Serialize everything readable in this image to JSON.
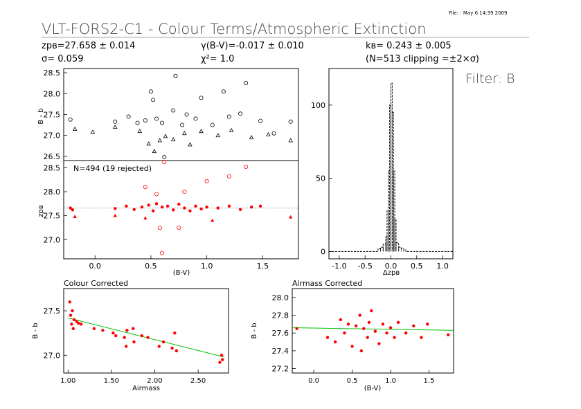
{
  "header": {
    "file_stamp": "File:   : May  6 14:39 2009",
    "title": "VLT-FORS2-C1  -  Colour Terms/Atmospheric Extinction",
    "zp_line": "zpʙ=27.658 ± 0.014",
    "sigma_line": "σ=  0.059",
    "gamma_line": "γ(B-V)=-0.017 ± 0.010",
    "chi_line": "χ²=   1.0",
    "k_line": "kʙ= 0.243 ± 0.005",
    "n_line": "(N=513 clipping =±2×σ)",
    "filter": "Filter: B"
  },
  "colors": {
    "accent": "#ff0000",
    "fit_line": "#00c000",
    "axis": "#000000"
  },
  "chart_data": [
    {
      "id": "raw",
      "type": "scatter",
      "xlabel": "",
      "ylabel": "B - b",
      "xlim": [
        -0.28,
        1.82
      ],
      "ylim": [
        26.4,
        28.6
      ],
      "yticks": [
        "26.5",
        "27.0",
        "27.5",
        "28.0",
        "28.5"
      ],
      "ytick_values": [
        26.5,
        27.0,
        27.5,
        28.0,
        28.5
      ],
      "series": [
        {
          "marker": "circle",
          "points": [
            [
              -0.22,
              27.38
            ],
            [
              0.18,
              27.33
            ],
            [
              0.3,
              27.45
            ],
            [
              0.38,
              27.3
            ],
            [
              0.45,
              27.36
            ],
            [
              0.5,
              28.05
            ],
            [
              0.52,
              27.85
            ],
            [
              0.55,
              27.4
            ],
            [
              0.6,
              27.3
            ],
            [
              0.62,
              26.48
            ],
            [
              0.7,
              27.6
            ],
            [
              0.72,
              28.42
            ],
            [
              0.78,
              27.25
            ],
            [
              0.82,
              27.5
            ],
            [
              0.9,
              27.4
            ],
            [
              0.95,
              27.9
            ],
            [
              1.05,
              27.25
            ],
            [
              1.15,
              28.05
            ],
            [
              1.2,
              27.45
            ],
            [
              1.3,
              27.52
            ],
            [
              1.35,
              28.25
            ],
            [
              1.48,
              27.35
            ],
            [
              1.6,
              27.05
            ],
            [
              1.75,
              27.33
            ]
          ]
        },
        {
          "marker": "triangle",
          "points": [
            [
              -0.18,
              27.15
            ],
            [
              -0.02,
              27.08
            ],
            [
              0.18,
              27.2
            ],
            [
              0.4,
              27.1
            ],
            [
              0.48,
              26.8
            ],
            [
              0.53,
              26.62
            ],
            [
              0.58,
              26.88
            ],
            [
              0.63,
              26.98
            ],
            [
              0.7,
              26.9
            ],
            [
              0.8,
              27.05
            ],
            [
              0.85,
              26.78
            ],
            [
              0.95,
              27.1
            ],
            [
              1.1,
              27.0
            ],
            [
              1.22,
              27.12
            ],
            [
              1.4,
              26.95
            ],
            [
              1.55,
              27.02
            ],
            [
              1.75,
              26.88
            ]
          ]
        }
      ]
    },
    {
      "id": "corrected",
      "type": "scatter",
      "xlabel": "(B-V)",
      "ylabel": "zpʙ",
      "annotation": "N=494 (19 rejected)",
      "xlim": [
        -0.28,
        1.82
      ],
      "ylim": [
        26.6,
        28.65
      ],
      "yticks": [
        "27.0",
        "27.5",
        "28.0",
        "28.5"
      ],
      "ytick_values": [
        27.0,
        27.5,
        28.0,
        28.5
      ],
      "xticks": [
        "0.0",
        "0.5",
        "1.0",
        "1.5"
      ],
      "xtick_values": [
        0.0,
        0.5,
        1.0,
        1.5
      ],
      "reference_line": 27.658,
      "series": [
        {
          "name": "",
          "marker": "filled-circle",
          "points": [
            [
              -0.22,
              27.66
            ],
            [
              -0.2,
              27.62
            ],
            [
              0.18,
              27.65
            ],
            [
              0.28,
              27.7
            ],
            [
              0.35,
              27.63
            ],
            [
              0.42,
              27.68
            ],
            [
              0.48,
              27.72
            ],
            [
              0.52,
              27.6
            ],
            [
              0.55,
              27.75
            ],
            [
              0.6,
              27.68
            ],
            [
              0.65,
              27.7
            ],
            [
              0.7,
              27.62
            ],
            [
              0.75,
              27.74
            ],
            [
              0.8,
              27.66
            ],
            [
              0.85,
              27.6
            ],
            [
              0.9,
              27.7
            ],
            [
              0.95,
              27.64
            ],
            [
              1.0,
              27.68
            ],
            [
              1.1,
              27.66
            ],
            [
              1.2,
              27.7
            ],
            [
              1.3,
              27.63
            ],
            [
              1.4,
              27.68
            ],
            [
              1.48,
              27.7
            ]
          ]
        },
        {
          "name": "",
          "marker": "open-circle",
          "points": [
            [
              0.45,
              28.1
            ],
            [
              0.55,
              27.95
            ],
            [
              0.58,
              27.25
            ],
            [
              0.6,
              26.72
            ],
            [
              0.62,
              28.62
            ],
            [
              0.8,
              28.0
            ],
            [
              1.0,
              28.22
            ],
            [
              1.2,
              28.32
            ],
            [
              1.35,
              28.52
            ],
            [
              0.75,
              27.25
            ]
          ]
        },
        {
          "name": "",
          "marker": "filled-triangle",
          "points": [
            [
              -0.18,
              27.48
            ],
            [
              0.18,
              27.5
            ],
            [
              0.45,
              27.45
            ],
            [
              1.05,
              27.4
            ],
            [
              1.75,
              27.47
            ]
          ]
        }
      ]
    },
    {
      "id": "histogram",
      "type": "histogram",
      "xlabel": "Δzpʙ",
      "xlim": [
        -1.2,
        1.2
      ],
      "ylim": [
        -5,
        125
      ],
      "xticks": [
        "-1.0",
        "-0.5",
        "0.0",
        "0.5",
        "1.0"
      ],
      "xtick_values": [
        -1.0,
        -0.5,
        0.0,
        0.5,
        1.0
      ],
      "yticks": [
        "0",
        "50",
        "100"
      ],
      "ytick_values": [
        0,
        50,
        100
      ],
      "bins_x": [
        -0.25,
        -0.2,
        -0.15,
        -0.1,
        -0.075,
        -0.05,
        -0.025,
        0.0,
        0.025,
        0.05,
        0.075,
        0.1,
        0.15,
        0.2,
        0.25
      ],
      "counts": [
        2,
        3,
        5,
        10,
        28,
        55,
        100,
        115,
        95,
        55,
        22,
        6,
        3,
        2,
        1
      ]
    },
    {
      "id": "colour_corrected",
      "type": "scatter",
      "title": "Colour Corrected",
      "xlabel": "Airmass",
      "ylabel": "B - b",
      "xlim": [
        0.95,
        2.85
      ],
      "ylim": [
        26.8,
        27.75
      ],
      "xticks": [
        "1.00",
        "1.50",
        "2.00",
        "2.50"
      ],
      "xtick_values": [
        1.0,
        1.5,
        2.0,
        2.5
      ],
      "yticks": [
        "27.0",
        "27.5"
      ],
      "ytick_values": [
        27.0,
        27.5
      ],
      "fit_line": [
        [
          1.0,
          27.42
        ],
        [
          2.8,
          26.98
        ]
      ],
      "points": [
        [
          1.02,
          27.6
        ],
        [
          1.03,
          27.45
        ],
        [
          1.04,
          27.35
        ],
        [
          1.05,
          27.5
        ],
        [
          1.06,
          27.3
        ],
        [
          1.07,
          27.4
        ],
        [
          1.1,
          27.38
        ],
        [
          1.12,
          27.36
        ],
        [
          1.15,
          27.35
        ],
        [
          1.3,
          27.3
        ],
        [
          1.4,
          27.28
        ],
        [
          1.52,
          27.25
        ],
        [
          1.55,
          27.22
        ],
        [
          1.65,
          27.2
        ],
        [
          1.67,
          27.1
        ],
        [
          1.68,
          27.28
        ],
        [
          1.75,
          27.3
        ],
        [
          1.76,
          27.15
        ],
        [
          1.85,
          27.22
        ],
        [
          1.92,
          27.2
        ],
        [
          2.05,
          27.1
        ],
        [
          2.1,
          27.15
        ],
        [
          2.2,
          27.08
        ],
        [
          2.23,
          27.25
        ],
        [
          2.25,
          27.05
        ],
        [
          2.75,
          26.92
        ],
        [
          2.77,
          27.0
        ],
        [
          2.78,
          26.95
        ]
      ]
    },
    {
      "id": "airmass_corrected",
      "type": "scatter",
      "title": "Airmass Corrected",
      "xlabel": "(B-V)",
      "ylabel": "B - b",
      "xlim": [
        -0.28,
        1.82
      ],
      "ylim": [
        27.15,
        28.1
      ],
      "xticks": [
        "0.0",
        "0.5",
        "1.0",
        "1.5"
      ],
      "xtick_values": [
        0.0,
        0.5,
        1.0,
        1.5
      ],
      "yticks": [
        "27.2",
        "27.4",
        "27.6",
        "27.8",
        "28.0"
      ],
      "ytick_values": [
        27.2,
        27.4,
        27.6,
        27.8,
        28.0
      ],
      "fit_line": [
        [
          -0.28,
          27.66
        ],
        [
          1.82,
          27.63
        ]
      ],
      "points": [
        [
          -0.22,
          27.65
        ],
        [
          0.18,
          27.55
        ],
        [
          0.28,
          27.5
        ],
        [
          0.35,
          27.75
        ],
        [
          0.4,
          27.6
        ],
        [
          0.45,
          27.7
        ],
        [
          0.5,
          27.45
        ],
        [
          0.55,
          27.68
        ],
        [
          0.6,
          27.8
        ],
        [
          0.62,
          27.4
        ],
        [
          0.65,
          27.65
        ],
        [
          0.7,
          27.55
        ],
        [
          0.72,
          27.72
        ],
        [
          0.75,
          27.85
        ],
        [
          0.8,
          27.62
        ],
        [
          0.85,
          27.48
        ],
        [
          0.9,
          27.7
        ],
        [
          0.95,
          27.6
        ],
        [
          1.0,
          27.66
        ],
        [
          1.05,
          27.55
        ],
        [
          1.1,
          27.72
        ],
        [
          1.2,
          27.6
        ],
        [
          1.3,
          27.68
        ],
        [
          1.4,
          27.55
        ],
        [
          1.48,
          27.7
        ],
        [
          1.75,
          27.58
        ]
      ]
    }
  ]
}
